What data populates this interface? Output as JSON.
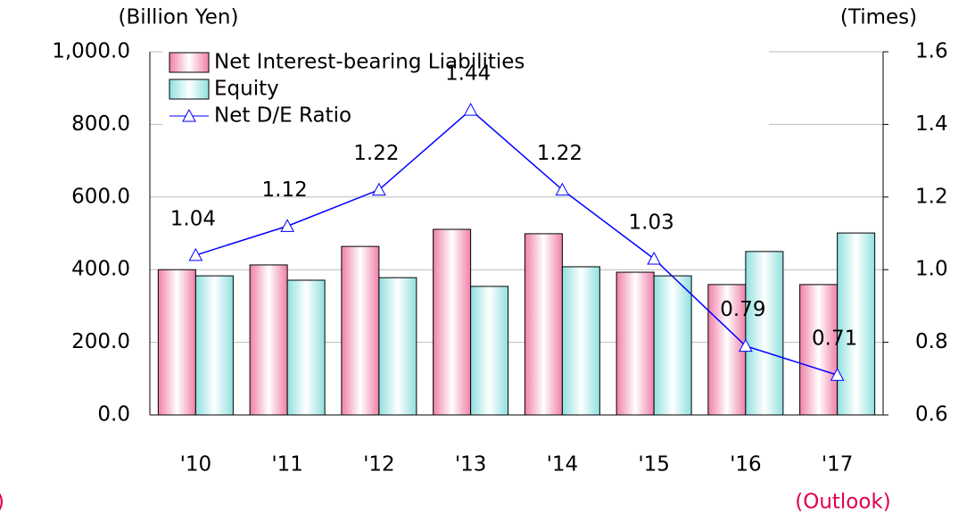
{
  "chart_data": {
    "type": "bar",
    "y_label": "(Billion Yen)",
    "y2_label": "(Times)",
    "categories": [
      "'10",
      "'11",
      "'12",
      "'13",
      "'14",
      "'15",
      "'16",
      "'17"
    ],
    "series": [
      {
        "name": "Net Interest-bearing Liabilities",
        "color": "#f080a8",
        "values": [
          400,
          413,
          464,
          511,
          499,
          393,
          359,
          359
        ]
      },
      {
        "name": "Equity",
        "color": "#8fe0e0",
        "values": [
          383,
          371,
          378,
          354,
          408,
          383,
          450,
          501
        ]
      },
      {
        "name": "Net D/E Ratio",
        "color": "#0000ff",
        "type": "line",
        "axis": "y2",
        "values": [
          1.04,
          1.12,
          1.22,
          1.44,
          1.22,
          1.03,
          0.79,
          0.71
        ]
      }
    ],
    "ylim": [
      0,
      1000
    ],
    "yticks": [
      {
        "value": 0,
        "label": "0.0"
      },
      {
        "value": 200,
        "label": "200.0"
      },
      {
        "value": 400,
        "label": "400.0"
      },
      {
        "value": 600,
        "label": "600.0"
      },
      {
        "value": 800,
        "label": "800.0"
      },
      {
        "value": 1000,
        "label": "1,000.0"
      }
    ],
    "y2lim": [
      0.6,
      1.6
    ],
    "y2ticks": [
      0.6,
      0.8,
      {
        "value": 1.0,
        "label": "1.0"
      },
      1.2,
      1.4,
      1.6
    ],
    "grid": true,
    "legend": "top-left",
    "annotations": [
      ")",
      "(Outlook)"
    ]
  }
}
